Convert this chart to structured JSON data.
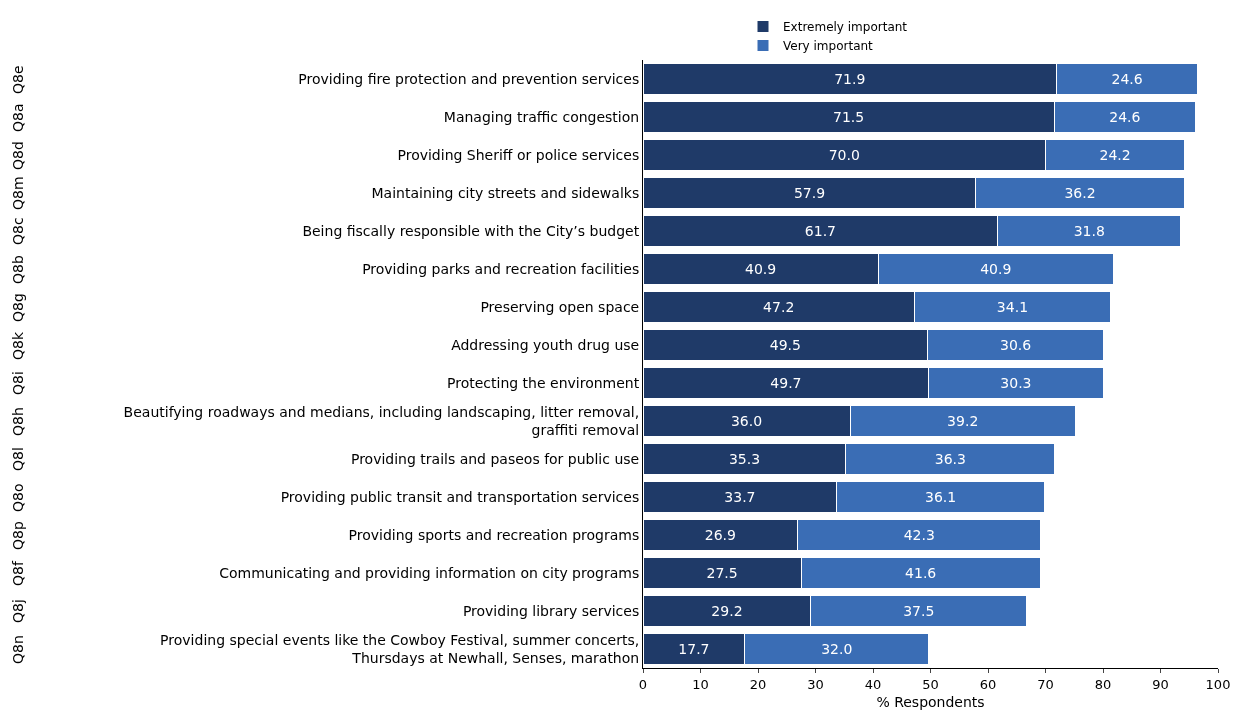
{
  "chart_data": {
    "type": "bar",
    "orientation": "horizontal",
    "stacked": true,
    "categories": [
      "Providing fire protection and prevention services",
      "Managing traffic congestion",
      "Providing Sheriff or police services",
      "Maintaining city streets and sidewalks",
      "Being fiscally responsible with the City’s budget",
      "Providing parks and recreation facilities",
      "Preserving open space",
      "Addressing youth drug use",
      "Protecting the environment",
      "Beautifying roadways and medians, including landscaping, litter removal, graffiti removal",
      "Providing trails and paseos for public use",
      "Providing public transit and transportation services",
      "Providing sports and recreation programs",
      "Communicating and providing information on city programs",
      "Providing library services",
      "Providing special events like the Cowboy Festival, summer concerts, Thursdays at Newhall, Senses, marathon"
    ],
    "series": [
      {
        "name": "Extremely important",
        "color": "#1f3a68",
        "values": [
          71.9,
          71.5,
          70.0,
          57.9,
          61.7,
          40.9,
          47.2,
          49.5,
          49.7,
          36.0,
          35.3,
          33.7,
          26.9,
          27.5,
          29.2,
          17.7
        ],
        "value_labels": [
          "71.9",
          "71.5",
          "70.0",
          "57.9",
          "61.7",
          "40.9",
          "47.2",
          "49.5",
          "49.7",
          "36.0",
          "35.3",
          "33.7",
          "26.9",
          "27.5",
          "29.2",
          "17.7"
        ]
      },
      {
        "name": "Very important",
        "color": "#3a6db5",
        "values": [
          24.6,
          24.6,
          24.2,
          36.2,
          31.8,
          40.9,
          34.1,
          30.6,
          30.3,
          39.2,
          36.3,
          36.1,
          42.3,
          41.6,
          37.5,
          32.0
        ],
        "value_labels": [
          "24.6",
          "24.6",
          "24.2",
          "36.2",
          "31.8",
          "40.9",
          "34.1",
          "30.6",
          "30.3",
          "39.2",
          "36.3",
          "36.1",
          "42.3",
          "41.6",
          "37.5",
          "32.0"
        ]
      }
    ],
    "annotations": [
      "Q8e",
      "Q8a",
      "Q8d",
      "Q8m",
      "Q8c",
      "Q8b",
      "Q8g",
      "Q8k",
      "Q8i",
      "Q8h",
      "Q8l",
      "Q8o",
      "Q8p",
      "Q8f",
      "Q8j",
      "Q8n"
    ],
    "xlabel": "% Respondents",
    "xlim": [
      0,
      100
    ],
    "xticks": [
      0,
      10,
      20,
      30,
      40,
      50,
      60,
      70,
      80,
      90,
      100
    ],
    "grid": false,
    "legend": "top"
  }
}
